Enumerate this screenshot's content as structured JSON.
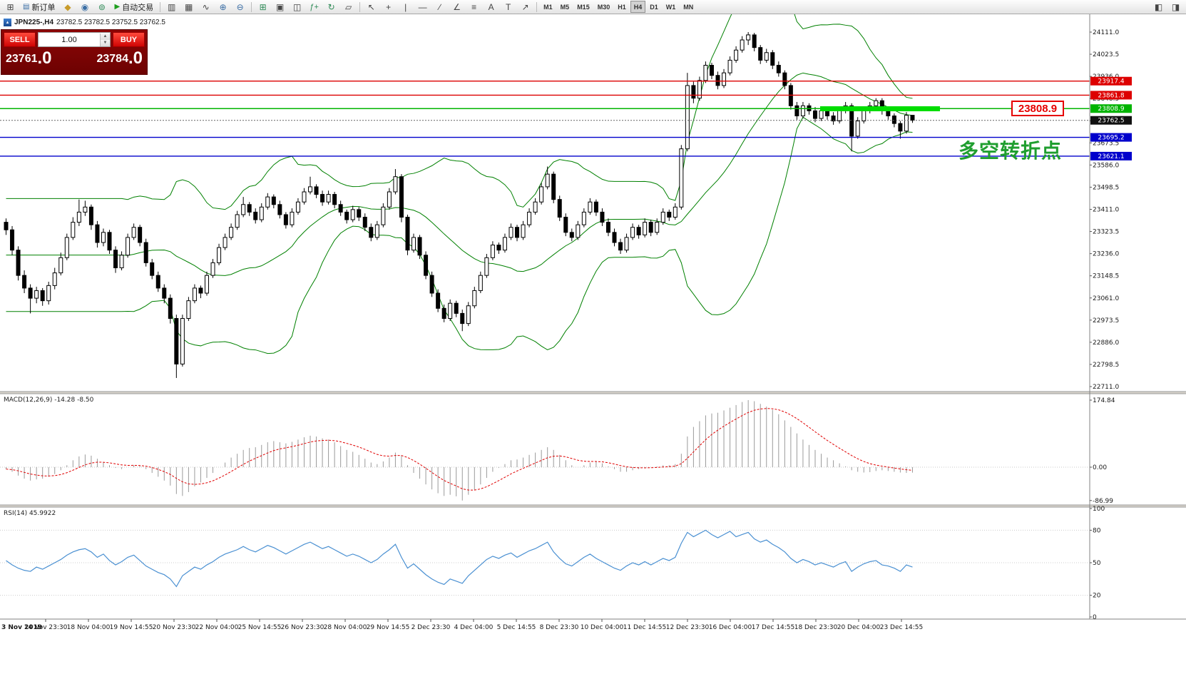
{
  "toolbar": {
    "new_order_label": "新订单",
    "autotrading_label": "自动交易",
    "timeframes": [
      "M1",
      "M5",
      "M15",
      "M30",
      "H1",
      "H4",
      "D1",
      "W1",
      "MN"
    ],
    "active_timeframe": "H4"
  },
  "chart_header": {
    "symbol_title": "JPN225-,H4",
    "ohlc": "23782.5 23782.5 23752.5 23762.5"
  },
  "trade_panel": {
    "sell_label": "SELL",
    "buy_label": "BUY",
    "lot_value": "1.00",
    "sell_price_main": "23761",
    "sell_price_pips": ".0",
    "buy_price_main": "23784",
    "buy_price_pips": ".0"
  },
  "levels": [
    {
      "value": 23917.4,
      "label": "23917.4",
      "color": "#dd0000"
    },
    {
      "value": 23861.8,
      "label": "23861.8",
      "color": "#dd0000"
    },
    {
      "value": 23808.9,
      "label": "23808.9",
      "color": "#00b400"
    },
    {
      "value": 23695.2,
      "label": "23695.2",
      "color": "#0000cc"
    },
    {
      "value": 23621.1,
      "label": "23621.1",
      "color": "#0000cc"
    }
  ],
  "current_price": {
    "value": 23762.5,
    "label": "23762.5",
    "color": "#111111"
  },
  "annotations": {
    "price_callout": "23808.9",
    "callout_color": "#e60000",
    "highlight_color": "#00dd00",
    "turning_point_text": "多空转折点",
    "turning_point_color": "#1f9e2f"
  },
  "indicators": {
    "macd": {
      "title": "MACD(12,26,9) -14.28 -8.50",
      "scale": [
        "174.84",
        "0.00",
        "-86.99"
      ]
    },
    "rsi": {
      "title": "RSI(14) 45.9922",
      "scale": [
        "100",
        "80",
        "50",
        "20",
        "0"
      ]
    }
  },
  "chart_data": {
    "type": "candlestick",
    "symbol": "JPN225-",
    "timeframe": "H4",
    "price_axis": {
      "max": 24111.0,
      "min": 22711.0,
      "tick_step": 87.5,
      "ticks": [
        "24111.0",
        "24023.5",
        "23936.0",
        "23848.5",
        "23761.0",
        "23673.5",
        "23586.0",
        "23498.5",
        "23411.0",
        "23323.5",
        "23236.0",
        "23148.5",
        "23061.0",
        "22973.5",
        "22886.0",
        "22798.5",
        "22711.0"
      ]
    },
    "bollinger": {
      "period": 20,
      "deviation": 2,
      "color": "#008000"
    },
    "time_labels": [
      "3 Nov 2019",
      "14 Nov 23:30",
      "18 Nov 04:00",
      "19 Nov 14:55",
      "20 Nov 23:30",
      "22 Nov 04:00",
      "25 Nov 14:55",
      "26 Nov 23:30",
      "28 Nov 04:00",
      "29 Nov 14:55",
      "2 Dec 23:30",
      "4 Dec 04:00",
      "5 Dec 14:55",
      "8 Dec 23:30",
      "10 Dec 04:00",
      "11 Dec 14:55",
      "12 Dec 23:30",
      "16 Dec 04:00",
      "17 Dec 14:55",
      "18 Dec 23:30",
      "20 Dec 04:00",
      "23 Dec 14:55"
    ],
    "candles": [
      [
        23360,
        23375,
        23310,
        23330
      ],
      [
        23330,
        23345,
        23230,
        23250
      ],
      [
        23250,
        23265,
        23130,
        23150
      ],
      [
        23150,
        23170,
        23080,
        23100
      ],
      [
        23100,
        23115,
        23000,
        23060
      ],
      [
        23060,
        23105,
        23040,
        23090
      ],
      [
        23090,
        23100,
        23030,
        23050
      ],
      [
        23050,
        23125,
        23035,
        23110
      ],
      [
        23110,
        23180,
        23095,
        23160
      ],
      [
        23160,
        23240,
        23150,
        23220
      ],
      [
        23220,
        23315,
        23210,
        23300
      ],
      [
        23300,
        23380,
        23290,
        23360
      ],
      [
        23360,
        23450,
        23345,
        23400
      ],
      [
        23400,
        23445,
        23385,
        23420
      ],
      [
        23420,
        23430,
        23330,
        23350
      ],
      [
        23350,
        23365,
        23260,
        23280
      ],
      [
        23280,
        23335,
        23265,
        23320
      ],
      [
        23320,
        23330,
        23235,
        23250
      ],
      [
        23250,
        23265,
        23160,
        23180
      ],
      [
        23180,
        23245,
        23170,
        23230
      ],
      [
        23230,
        23315,
        23220,
        23300
      ],
      [
        23300,
        23355,
        23290,
        23340
      ],
      [
        23340,
        23350,
        23265,
        23280
      ],
      [
        23280,
        23295,
        23185,
        23200
      ],
      [
        23200,
        23215,
        23135,
        23150
      ],
      [
        23150,
        23165,
        23085,
        23100
      ],
      [
        23100,
        23115,
        23040,
        23060
      ],
      [
        23060,
        23075,
        22960,
        22980
      ],
      [
        22980,
        22995,
        22745,
        22800
      ],
      [
        22800,
        22995,
        22790,
        22980
      ],
      [
        22980,
        23065,
        22970,
        23050
      ],
      [
        23050,
        23115,
        23040,
        23100
      ],
      [
        23100,
        23110,
        23060,
        23080
      ],
      [
        23080,
        23165,
        23070,
        23150
      ],
      [
        23150,
        23215,
        23140,
        23200
      ],
      [
        23200,
        23275,
        23190,
        23260
      ],
      [
        23260,
        23315,
        23250,
        23300
      ],
      [
        23300,
        23355,
        23290,
        23340
      ],
      [
        23340,
        23405,
        23330,
        23390
      ],
      [
        23390,
        23460,
        23380,
        23430
      ],
      [
        23430,
        23440,
        23385,
        23400
      ],
      [
        23400,
        23415,
        23355,
        23370
      ],
      [
        23370,
        23435,
        23360,
        23420
      ],
      [
        23420,
        23475,
        23410,
        23460
      ],
      [
        23460,
        23470,
        23415,
        23430
      ],
      [
        23430,
        23445,
        23375,
        23390
      ],
      [
        23390,
        23400,
        23335,
        23350
      ],
      [
        23350,
        23415,
        23340,
        23400
      ],
      [
        23400,
        23455,
        23390,
        23440
      ],
      [
        23440,
        23495,
        23430,
        23480
      ],
      [
        23480,
        23540,
        23470,
        23500
      ],
      [
        23500,
        23510,
        23455,
        23470
      ],
      [
        23470,
        23485,
        23425,
        23440
      ],
      [
        23440,
        23485,
        23430,
        23470
      ],
      [
        23470,
        23480,
        23415,
        23430
      ],
      [
        23430,
        23445,
        23385,
        23400
      ],
      [
        23400,
        23410,
        23355,
        23370
      ],
      [
        23370,
        23425,
        23360,
        23410
      ],
      [
        23410,
        23420,
        23365,
        23380
      ],
      [
        23380,
        23395,
        23325,
        23340
      ],
      [
        23340,
        23355,
        23285,
        23300
      ],
      [
        23300,
        23365,
        23290,
        23350
      ],
      [
        23350,
        23435,
        23340,
        23420
      ],
      [
        23420,
        23495,
        23410,
        23480
      ],
      [
        23480,
        23570,
        23470,
        23540
      ],
      [
        23540,
        23550,
        23360,
        23380
      ],
      [
        23380,
        23390,
        23230,
        23250
      ],
      [
        23250,
        23315,
        23240,
        23300
      ],
      [
        23300,
        23310,
        23215,
        23230
      ],
      [
        23230,
        23245,
        23135,
        23150
      ],
      [
        23150,
        23165,
        23065,
        23080
      ],
      [
        23080,
        23095,
        23005,
        23020
      ],
      [
        23020,
        23035,
        22965,
        22980
      ],
      [
        22980,
        23055,
        22970,
        23040
      ],
      [
        23040,
        23050,
        22985,
        23000
      ],
      [
        23000,
        23015,
        22930,
        22960
      ],
      [
        22960,
        23045,
        22950,
        23030
      ],
      [
        23030,
        23105,
        23020,
        23090
      ],
      [
        23090,
        23165,
        23080,
        23150
      ],
      [
        23150,
        23235,
        23140,
        23220
      ],
      [
        23220,
        23285,
        23210,
        23270
      ],
      [
        23270,
        23280,
        23235,
        23250
      ],
      [
        23250,
        23315,
        23240,
        23300
      ],
      [
        23300,
        23355,
        23290,
        23340
      ],
      [
        23340,
        23350,
        23285,
        23300
      ],
      [
        23300,
        23365,
        23290,
        23350
      ],
      [
        23350,
        23415,
        23340,
        23400
      ],
      [
        23400,
        23455,
        23390,
        23440
      ],
      [
        23440,
        23515,
        23430,
        23500
      ],
      [
        23500,
        23580,
        23490,
        23550
      ],
      [
        23550,
        23560,
        23435,
        23450
      ],
      [
        23450,
        23465,
        23365,
        23380
      ],
      [
        23380,
        23395,
        23305,
        23320
      ],
      [
        23320,
        23335,
        23285,
        23300
      ],
      [
        23300,
        23365,
        23290,
        23350
      ],
      [
        23350,
        23415,
        23340,
        23400
      ],
      [
        23400,
        23455,
        23390,
        23440
      ],
      [
        23440,
        23450,
        23385,
        23400
      ],
      [
        23400,
        23415,
        23345,
        23360
      ],
      [
        23360,
        23375,
        23305,
        23320
      ],
      [
        23320,
        23335,
        23265,
        23280
      ],
      [
        23280,
        23295,
        23235,
        23250
      ],
      [
        23250,
        23315,
        23240,
        23300
      ],
      [
        23300,
        23355,
        23290,
        23340
      ],
      [
        23340,
        23350,
        23295,
        23310
      ],
      [
        23310,
        23375,
        23300,
        23360
      ],
      [
        23360,
        23370,
        23305,
        23320
      ],
      [
        23320,
        23375,
        23310,
        23360
      ],
      [
        23360,
        23415,
        23350,
        23400
      ],
      [
        23400,
        23410,
        23365,
        23380
      ],
      [
        23380,
        23435,
        23370,
        23420
      ],
      [
        23420,
        23665,
        23410,
        23650
      ],
      [
        23650,
        23950,
        23640,
        23900
      ],
      [
        23900,
        23915,
        23830,
        23850
      ],
      [
        23850,
        23935,
        23840,
        23920
      ],
      [
        23920,
        23995,
        23910,
        23980
      ],
      [
        23980,
        23990,
        23925,
        23940
      ],
      [
        23940,
        23955,
        23885,
        23900
      ],
      [
        23900,
        23965,
        23890,
        23950
      ],
      [
        23950,
        24015,
        23940,
        24000
      ],
      [
        24000,
        24055,
        23990,
        24040
      ],
      [
        24040,
        24095,
        24030,
        24080
      ],
      [
        24080,
        24111,
        24060,
        24100
      ],
      [
        24100,
        24108,
        24035,
        24050
      ],
      [
        24050,
        24060,
        23985,
        24000
      ],
      [
        24000,
        24045,
        23990,
        24030
      ],
      [
        24030,
        24040,
        23965,
        23980
      ],
      [
        23980,
        23995,
        23935,
        23950
      ],
      [
        23950,
        23960,
        23885,
        23900
      ],
      [
        23900,
        23910,
        23805,
        23820
      ],
      [
        23820,
        23835,
        23765,
        23780
      ],
      [
        23780,
        23835,
        23770,
        23820
      ],
      [
        23820,
        23830,
        23785,
        23800
      ],
      [
        23800,
        23815,
        23755,
        23770
      ],
      [
        23770,
        23815,
        23760,
        23800
      ],
      [
        23800,
        23810,
        23765,
        23780
      ],
      [
        23780,
        23795,
        23745,
        23760
      ],
      [
        23760,
        23815,
        23750,
        23800
      ],
      [
        23800,
        23835,
        23790,
        23820
      ],
      [
        23820,
        23830,
        23640,
        23700
      ],
      [
        23700,
        23775,
        23690,
        23760
      ],
      [
        23760,
        23815,
        23750,
        23800
      ],
      [
        23800,
        23835,
        23790,
        23820
      ],
      [
        23820,
        23850,
        23810,
        23840
      ],
      [
        23840,
        23850,
        23785,
        23800
      ],
      [
        23800,
        23810,
        23765,
        23780
      ],
      [
        23780,
        23790,
        23735,
        23750
      ],
      [
        23750,
        23760,
        23690,
        23720
      ],
      [
        23720,
        23795,
        23710,
        23782.5
      ],
      [
        23782.5,
        23782.5,
        23752.5,
        23762.5
      ]
    ],
    "macd": {
      "current": -14.28,
      "signal_current": -8.5,
      "signal_period": 9,
      "range": [
        -86.99,
        174.84
      ],
      "values": [
        -5,
        -12,
        -22,
        -30,
        -35,
        -32,
        -30,
        -25,
        -18,
        -8,
        5,
        18,
        28,
        33,
        30,
        22,
        12,
        5,
        -2,
        -5,
        0,
        5,
        3,
        -5,
        -15,
        -25,
        -35,
        -48,
        -70,
        -75,
        -65,
        -50,
        -40,
        -28,
        -15,
        0,
        12,
        25,
        35,
        45,
        50,
        52,
        58,
        65,
        68,
        65,
        62,
        66,
        72,
        78,
        82,
        80,
        75,
        72,
        65,
        55,
        45,
        40,
        32,
        22,
        12,
        8,
        15,
        25,
        38,
        30,
        5,
        -15,
        -30,
        -45,
        -58,
        -68,
        -75,
        -72,
        -76,
        -86.99,
        -72,
        -60,
        -45,
        -28,
        -12,
        -2,
        8,
        18,
        20,
        25,
        32,
        38,
        45,
        52,
        45,
        32,
        18,
        5,
        0,
        5,
        12,
        15,
        10,
        2,
        -5,
        -12,
        -12,
        -8,
        -5,
        -2,
        0,
        2,
        5,
        5,
        8,
        35,
        80,
        105,
        120,
        135,
        140,
        142,
        148,
        155,
        162,
        170,
        174.84,
        172,
        165,
        158,
        150,
        138,
        122,
        105,
        88,
        72,
        58,
        45,
        35,
        25,
        18,
        10,
        2,
        -8,
        -12,
        -14,
        -13,
        -10,
        -8,
        -10,
        -12,
        -14,
        -15,
        -14.28
      ]
    },
    "rsi": {
      "period": 14,
      "current": 45.9922,
      "levels": [
        80,
        50,
        20
      ],
      "color": "#4a90d2",
      "values": [
        52,
        48,
        45,
        43,
        42,
        46,
        44,
        47,
        50,
        53,
        57,
        60,
        62,
        63,
        60,
        55,
        58,
        52,
        48,
        51,
        55,
        57,
        52,
        47,
        44,
        41,
        39,
        35,
        28,
        38,
        42,
        46,
        44,
        48,
        51,
        55,
        58,
        60,
        62,
        65,
        62,
        60,
        63,
        66,
        64,
        61,
        58,
        61,
        64,
        67,
        69,
        66,
        63,
        65,
        62,
        59,
        56,
        58,
        56,
        53,
        50,
        53,
        58,
        62,
        67,
        55,
        45,
        49,
        44,
        39,
        35,
        32,
        30,
        35,
        33,
        31,
        38,
        43,
        48,
        53,
        56,
        54,
        57,
        59,
        55,
        58,
        61,
        63,
        66,
        69,
        60,
        54,
        49,
        47,
        51,
        55,
        58,
        54,
        51,
        48,
        45,
        43,
        47,
        50,
        48,
        51,
        48,
        51,
        54,
        52,
        55,
        68,
        78,
        74,
        77,
        80,
        76,
        73,
        76,
        79,
        74,
        76,
        78,
        72,
        69,
        71,
        67,
        64,
        60,
        54,
        50,
        53,
        51,
        48,
        50,
        48,
        46,
        49,
        51,
        42,
        46,
        49,
        51,
        52,
        48,
        47,
        45,
        42,
        48,
        45.9922
      ]
    }
  }
}
